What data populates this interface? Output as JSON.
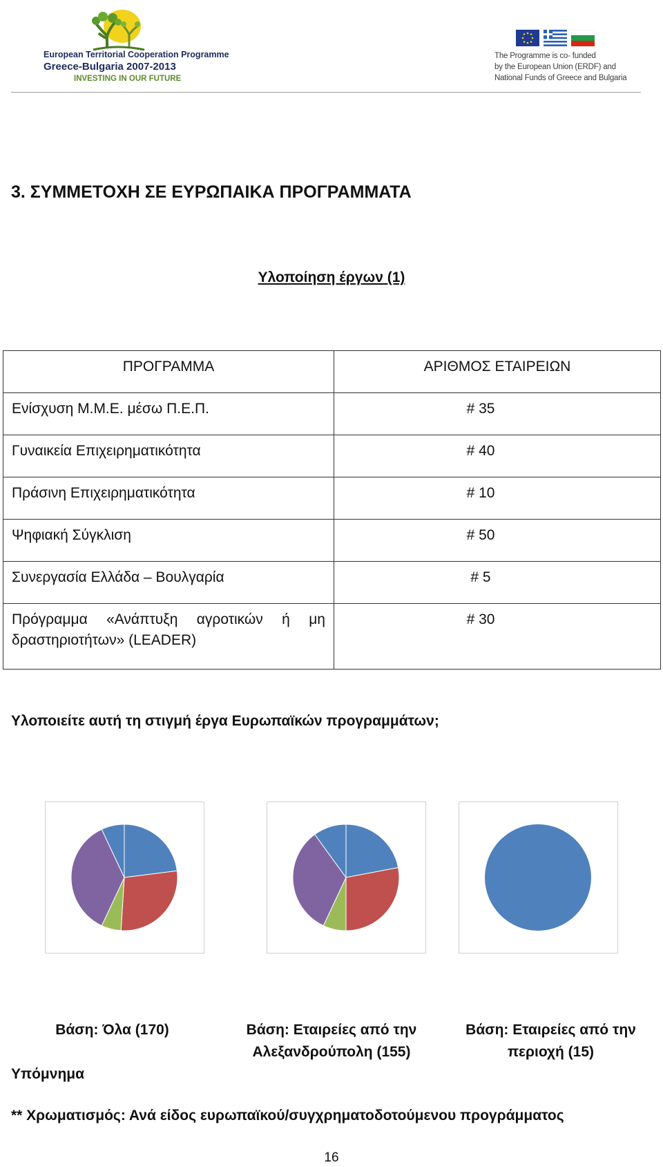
{
  "header": {
    "left_logo": {
      "line1": "European Territorial Cooperation Programme",
      "line2": "Greece-Bulgaria 2007-2013",
      "line3": "INVESTING IN OUR FUTURE"
    },
    "right_logo": {
      "line1": "The Programme is co- funded",
      "line2": "by the European Union (ERDF) and",
      "line3": "National Funds of Greece and Bulgaria"
    }
  },
  "section_title": "3. ΣΥΜΜΕΤΟΧΗ ΣΕ ΕΥΡΩΠΑΙΚΑ ΠΡΟΓΡΑΜΜΑΤΑ",
  "table_title": "Υλοποίηση έργων (1)",
  "table": {
    "headers": [
      "ΠΡΟΓΡΑΜΜΑ",
      "ΑΡΙΘΜΟΣ ΕΤΑΙΡΕΙΩΝ"
    ],
    "rows": [
      [
        "Ενίσχυση Μ.Μ.Ε. μέσω Π.Ε.Π.",
        "# 35"
      ],
      [
        "Γυναικεία Επιχειρηματικότητα",
        "# 40"
      ],
      [
        "Πράσινη Επιχειρηματικότητα",
        "# 10"
      ],
      [
        "Ψηφιακή Σύγκλιση",
        "# 50"
      ],
      [
        "Συνεργασία Ελλάδα – Βουλγαρία",
        "# 5"
      ],
      [
        "Πρόγραμμα «Ανάπτυξη αγροτικών ή μη δραστηριοτήτων» (LEADER)",
        "# 30"
      ]
    ]
  },
  "question": "Υλοποιείτε αυτή τη στιγμή έργα Ευρωπαϊκών προγραμμάτων;",
  "pie_colors": [
    "#4f81bd",
    "#c0504d",
    "#9bbb59",
    "#8064a2"
  ],
  "chart_data": [
    {
      "type": "pie",
      "values": [
        23,
        28,
        6,
        36,
        7
      ],
      "colors": [
        "#4f81bd",
        "#c0504d",
        "#9bbb59",
        "#8064a2",
        "#4f81bd"
      ]
    },
    {
      "type": "pie",
      "values": [
        22,
        28,
        7,
        33,
        10
      ],
      "colors": [
        "#4f81bd",
        "#c0504d",
        "#9bbb59",
        "#8064a2",
        "#4f81bd"
      ]
    },
    {
      "type": "pie",
      "values": [
        100
      ],
      "colors": [
        "#4f81bd"
      ]
    }
  ],
  "bases": [
    "Βάση: Όλα (170)",
    "Βάση: Εταιρείες από την Αλεξανδρούπολη (155)",
    "Βάση: Εταιρείες από την περιοχή (15)"
  ],
  "legend_label": "Υπόμνημα",
  "color_note": "** Χρωματισμός: Ανά είδος ευρωπαϊκού/συγχρηματοδοτούμενου προγράμματος",
  "page_number": "16"
}
